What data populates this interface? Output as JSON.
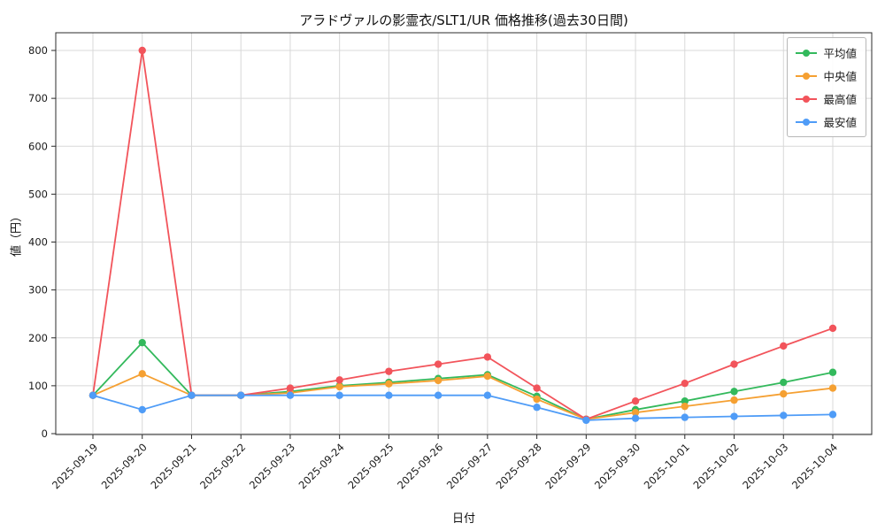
{
  "chart_data": {
    "type": "line",
    "title": "アラドヴァルの影霊衣/SLT1/UR 価格推移(過去30日間)",
    "xlabel": "日付",
    "ylabel": "値（円）",
    "categories": [
      "2025-09-19",
      "2025-09-20",
      "2025-09-21",
      "2025-09-22",
      "2025-09-23",
      "2025-09-24",
      "2025-09-25",
      "2025-09-26",
      "2025-09-27",
      "2025-09-28",
      "2025-09-29",
      "2025-09-30",
      "2025-10-01",
      "2025-10-02",
      "2025-10-03",
      "2025-10-04"
    ],
    "yticks": [
      0,
      100,
      200,
      300,
      400,
      500,
      600,
      700,
      800
    ],
    "ylim": [
      0,
      840
    ],
    "grid": true,
    "legend_position": "top-right",
    "series": [
      {
        "name": "平均値",
        "color": "#33b95c",
        "values": [
          80,
          190,
          80,
          80,
          88,
          100,
          107,
          115,
          123,
          78,
          30,
          50,
          68,
          88,
          107,
          128
        ]
      },
      {
        "name": "中央値",
        "color": "#f5a032",
        "values": [
          80,
          125,
          80,
          80,
          85,
          98,
          104,
          111,
          120,
          72,
          30,
          44,
          57,
          70,
          83,
          95
        ]
      },
      {
        "name": "最高値",
        "color": "#f2545b",
        "values": [
          80,
          800,
          80,
          80,
          95,
          112,
          130,
          145,
          160,
          95,
          30,
          68,
          105,
          145,
          183,
          220
        ]
      },
      {
        "name": "最安値",
        "color": "#4f9cf7",
        "values": [
          80,
          50,
          80,
          80,
          80,
          80,
          80,
          80,
          80,
          55,
          28,
          32,
          34,
          36,
          38,
          40
        ]
      }
    ]
  }
}
